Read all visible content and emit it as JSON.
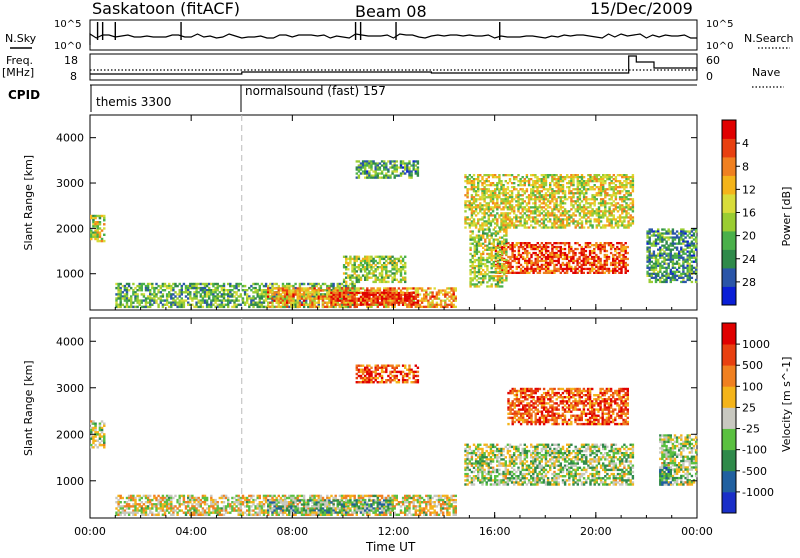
{
  "header": {
    "station": "Saskatoon (fitACF)",
    "beam": "Beam 08",
    "date": "15/Dec/2009"
  },
  "top_panels": {
    "nsky_label": "N.Sky",
    "nsearch_label": "N.Search",
    "freq_label_top": "Freq.",
    "freq_label_unit": "[MHz]",
    "nave_label": "Nave",
    "cpid_label": "CPID",
    "noise_ticks_left": [
      "10^5",
      "10^0"
    ],
    "noise_ticks_right": [
      "10^5",
      "10^0"
    ],
    "freq_ticks": [
      "18",
      "8"
    ],
    "nave_ticks": [
      "60",
      "0"
    ],
    "cpid_segments": [
      {
        "label": "themis 3300",
        "start_hour": 0
      },
      {
        "label": "normalsound (fast) 157",
        "start_hour": 6
      }
    ]
  },
  "chart_data": [
    {
      "type": "heatmap",
      "name": "power",
      "xlabel": "Time UT",
      "ylabel": "Slant Range [km]",
      "xlim": [
        0,
        24
      ],
      "ylim": [
        200,
        4500
      ],
      "x_ticks": [
        "00:00",
        "04:00",
        "08:00",
        "12:00",
        "16:00",
        "20:00",
        "00:00"
      ],
      "y_ticks": [
        1000,
        2000,
        3000,
        4000
      ],
      "colorbar": {
        "label": "Power [dB]",
        "ticks": [
          "4",
          "8",
          "12",
          "16",
          "20",
          "24",
          "28"
        ],
        "colors": [
          "#0a1fd6",
          "#2a55a8",
          "#2f8a4a",
          "#4ab04a",
          "#9acd32",
          "#d8dc3a",
          "#f4b41a",
          "#f08020",
          "#e84010",
          "#e00000"
        ]
      },
      "regions": [
        {
          "t0": 0.0,
          "t1": 0.6,
          "r0": 1700,
          "r1": 2300,
          "level": 0.5
        },
        {
          "t0": 1.0,
          "t1": 10.5,
          "r0": 250,
          "r1": 800,
          "level": 0.35
        },
        {
          "t0": 7.0,
          "t1": 14.5,
          "r0": 250,
          "r1": 700,
          "level": 0.7
        },
        {
          "t0": 9.5,
          "t1": 13.0,
          "r0": 300,
          "r1": 600,
          "level": 0.9
        },
        {
          "t0": 10.0,
          "t1": 12.5,
          "r0": 800,
          "r1": 1400,
          "level": 0.45
        },
        {
          "t0": 10.5,
          "t1": 13.0,
          "r0": 3100,
          "r1": 3500,
          "level": 0.3
        },
        {
          "t0": 14.8,
          "t1": 21.5,
          "r0": 2000,
          "r1": 3200,
          "level": 0.55
        },
        {
          "t0": 16.0,
          "t1": 21.3,
          "r0": 1000,
          "r1": 1700,
          "level": 0.85
        },
        {
          "t0": 15.0,
          "t1": 16.5,
          "r0": 700,
          "r1": 2000,
          "level": 0.5
        },
        {
          "t0": 22.0,
          "t1": 24.0,
          "r0": 800,
          "r1": 2000,
          "level": 0.3
        }
      ]
    },
    {
      "type": "heatmap",
      "name": "velocity",
      "xlabel": "Time UT",
      "ylabel": "Slant Range [km]",
      "xlim": [
        0,
        24
      ],
      "ylim": [
        200,
        4500
      ],
      "x_ticks": [
        "00:00",
        "04:00",
        "08:00",
        "12:00",
        "16:00",
        "20:00",
        "00:00"
      ],
      "y_ticks": [
        1000,
        2000,
        3000,
        4000
      ],
      "colorbar": {
        "label": "Velocity [m s^-1]",
        "ticks": [
          "1000",
          "500",
          "100",
          "25",
          "-25",
          "-100",
          "-500",
          "-1000"
        ],
        "colors": [
          "#1a2fc8",
          "#2060a0",
          "#2f8a4a",
          "#5ac040",
          "#c8c8c0",
          "#f4b41a",
          "#f08020",
          "#e84010",
          "#e00000"
        ]
      },
      "regions": [
        {
          "t0": 0.0,
          "t1": 0.6,
          "r0": 1700,
          "r1": 2300,
          "level": 0.45
        },
        {
          "t0": 1.0,
          "t1": 14.5,
          "r0": 250,
          "r1": 700,
          "level": 0.55
        },
        {
          "t0": 7.0,
          "t1": 12.0,
          "r0": 300,
          "r1": 600,
          "level": 0.35
        },
        {
          "t0": 10.5,
          "t1": 13.0,
          "r0": 3100,
          "r1": 3500,
          "level": 0.8
        },
        {
          "t0": 16.5,
          "t1": 21.3,
          "r0": 2200,
          "r1": 3000,
          "level": 0.8
        },
        {
          "t0": 14.8,
          "t1": 21.5,
          "r0": 900,
          "r1": 1800,
          "level": 0.45
        },
        {
          "t0": 22.5,
          "t1": 24.0,
          "r0": 900,
          "r1": 2000,
          "level": 0.45
        },
        {
          "t0": 22.5,
          "t1": 23.0,
          "r0": 900,
          "r1": 1300,
          "level": 0.3
        }
      ]
    }
  ]
}
